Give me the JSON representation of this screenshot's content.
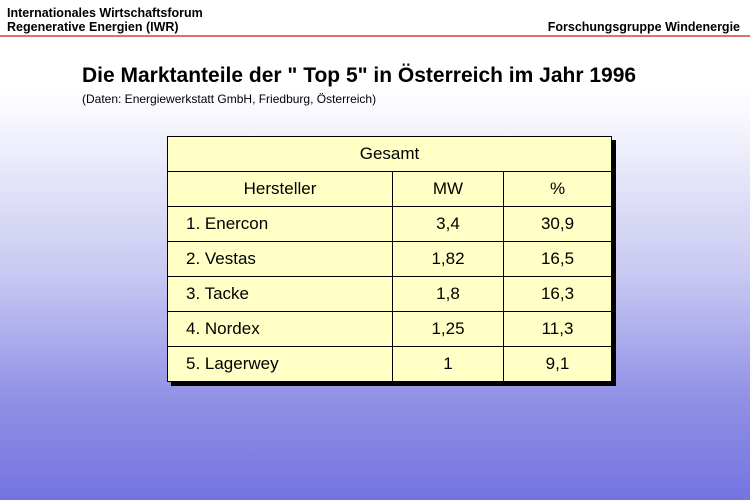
{
  "header": {
    "org_line1": "Internationales Wirtschaftsforum",
    "org_line2": "Regenerative Energien (IWR)",
    "group": "Forschungsgruppe Windenergie"
  },
  "title": "Die Marktanteile der \" Top 5\" in Österreich im Jahr 1996",
  "subtitle": "(Daten: Energiewerkstatt GmbH, Friedburg, Österreich)",
  "table": {
    "caption": "Gesamt",
    "columns": [
      "Hersteller",
      "MW",
      "%"
    ],
    "rows": [
      [
        "1. Enercon",
        "3,4",
        "30,9"
      ],
      [
        "2. Vestas",
        "1,82",
        "16,5"
      ],
      [
        "3. Tacke",
        "1,8",
        "16,3"
      ],
      [
        "4. Nordex",
        "1,25",
        "11,3"
      ],
      [
        "5. Lagerwey",
        "1",
        "9,1"
      ]
    ]
  },
  "colors": {
    "table_fill": "#ffffc6",
    "header_rule": "#e07070",
    "background_bottom": "#7474e0"
  }
}
